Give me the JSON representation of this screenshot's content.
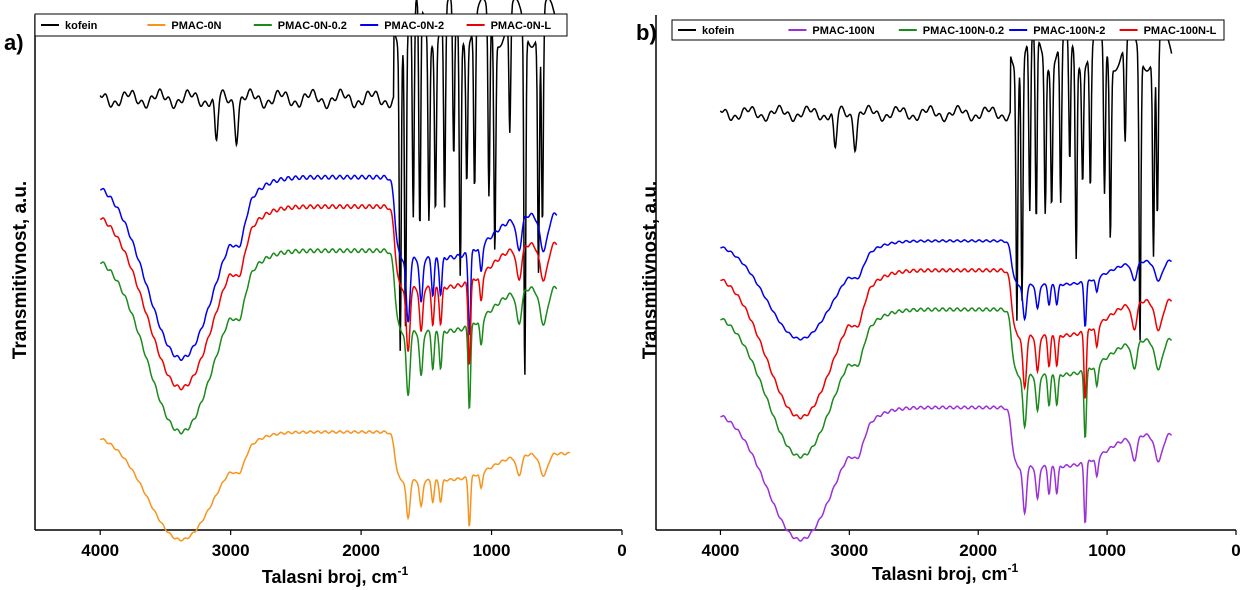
{
  "chart_data": [
    {
      "type": "line",
      "panel_label": "a)",
      "xlabel": "Talasni broj, cm",
      "xlabel_sup": "-1",
      "ylabel": "Transmitivnost, a.u.",
      "xlim": [
        4500,
        0
      ],
      "x_ticks": [
        "4000",
        "3000",
        "2000",
        "1000",
        "0"
      ],
      "legend_position": "top",
      "series": [
        {
          "name": "kofein",
          "color": "#000000",
          "profile": "kofein",
          "offset": 0.88,
          "scale": 0.62
        },
        {
          "name": "PMAC-0N",
          "color": "#f7941d",
          "profile": "pmac",
          "offset": 0.2,
          "scale": 0.22
        },
        {
          "name": "PMAC-0N-0.2",
          "color": "#1a8a1a",
          "profile": "pmac",
          "offset": 0.57,
          "scale": 0.37
        },
        {
          "name": "PMAC-0N-2",
          "color": "#0000ee",
          "profile": "pmac",
          "offset": 0.72,
          "scale": 0.37
        },
        {
          "name": "PMAC-0N-L",
          "color": "#ee0000",
          "profile": "pmac",
          "offset": 0.66,
          "scale": 0.37
        }
      ]
    },
    {
      "type": "line",
      "panel_label": "b)",
      "xlabel": "Talasni broj, cm",
      "xlabel_sup": "-1",
      "ylabel": "Transmitivnost, a.u.",
      "xlim": [
        4500,
        0
      ],
      "x_ticks": [
        "4000",
        "3000",
        "2000",
        "1000",
        "0"
      ],
      "legend_position": "top",
      "series": [
        {
          "name": "kofein",
          "color": "#000000",
          "profile": "kofein",
          "offset": 0.85,
          "scale": 0.51
        },
        {
          "name": "PMAC-100N",
          "color": "#9b30d9",
          "profile": "pmac",
          "offset": 0.25,
          "scale": 0.27
        },
        {
          "name": "PMAC-100N-0.2",
          "color": "#1a8a1a",
          "profile": "pmac",
          "offset": 0.45,
          "scale": 0.3
        },
        {
          "name": "PMAC-100N-2",
          "color": "#0000ee",
          "profile": "pmac",
          "offset": 0.59,
          "scale": 0.2
        },
        {
          "name": "PMAC-100N-L",
          "color": "#ee0000",
          "profile": "pmac",
          "offset": 0.53,
          "scale": 0.3
        }
      ]
    }
  ]
}
